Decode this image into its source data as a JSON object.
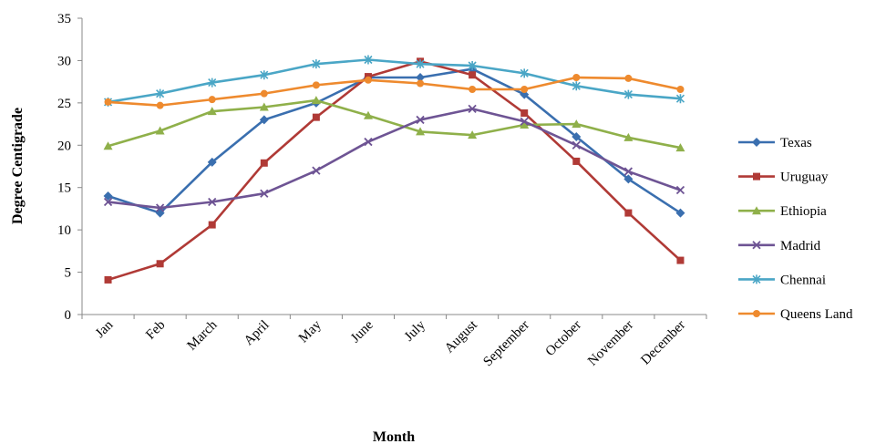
{
  "chart_data": {
    "type": "line",
    "title": "",
    "xlabel": "Month",
    "ylabel": "Degree Centigrade",
    "ylim": [
      0,
      35
    ],
    "yticks": [
      0,
      5,
      10,
      15,
      20,
      25,
      30,
      35
    ],
    "grid": false,
    "legend_position": "right",
    "categories": [
      "Jan",
      "Feb",
      "March",
      "April",
      "May",
      "June",
      "July",
      "August",
      "September",
      "October",
      "November",
      "December"
    ],
    "series": [
      {
        "name": "Texas",
        "color": "#3a6faf",
        "marker": "diamond",
        "values": [
          14,
          12,
          18,
          23,
          25,
          28,
          28,
          29,
          26,
          21,
          16,
          12
        ]
      },
      {
        "name": "Uruguay",
        "color": "#b03a36",
        "marker": "square",
        "values": [
          4.1,
          6,
          10.6,
          17.9,
          23.3,
          28.1,
          29.9,
          28.3,
          23.8,
          18.1,
          12,
          6.4
        ]
      },
      {
        "name": "Ethiopia",
        "color": "#8fb04a",
        "marker": "triangle",
        "values": [
          19.9,
          21.7,
          24,
          24.5,
          25.3,
          23.5,
          21.6,
          21.2,
          22.4,
          22.5,
          20.9,
          19.7
        ]
      },
      {
        "name": "Madrid",
        "color": "#6e5494",
        "marker": "x",
        "values": [
          13.3,
          12.6,
          13.3,
          14.3,
          17,
          20.4,
          23,
          24.3,
          22.8,
          20,
          16.9,
          14.7
        ]
      },
      {
        "name": "Chennai",
        "color": "#4aa6c6",
        "marker": "star",
        "values": [
          25.1,
          26.1,
          27.4,
          28.3,
          29.6,
          30.1,
          29.6,
          29.4,
          28.5,
          27,
          26,
          25.5
        ]
      },
      {
        "name": "Queens Land",
        "color": "#ee8a2e",
        "marker": "circle",
        "values": [
          25.1,
          24.7,
          25.4,
          26.1,
          27.1,
          27.7,
          27.3,
          26.6,
          26.6,
          28,
          27.9,
          26.6
        ]
      }
    ]
  }
}
